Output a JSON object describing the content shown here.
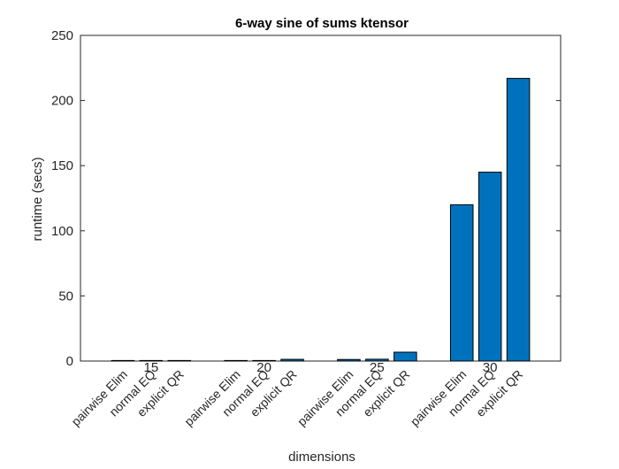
{
  "chart_data": {
    "type": "bar",
    "title": "6-way sine of sums ktensor",
    "xlabel": "dimensions",
    "ylabel": "runtime (secs)",
    "ylim": [
      0,
      250
    ],
    "yticks": [
      0,
      50,
      100,
      150,
      200,
      250
    ],
    "groups": [
      "15",
      "20",
      "25",
      "30"
    ],
    "bar_labels": [
      "pairwise Elim",
      "normal EQ",
      "explicit QR"
    ],
    "values": [
      [
        0.15,
        0.2,
        0.25
      ],
      [
        0.3,
        0.4,
        1.3
      ],
      [
        1.2,
        1.4,
        6.8
      ],
      [
        120,
        145,
        217
      ]
    ],
    "bar_color": "#0072BD",
    "grid": false,
    "legend": "none"
  }
}
